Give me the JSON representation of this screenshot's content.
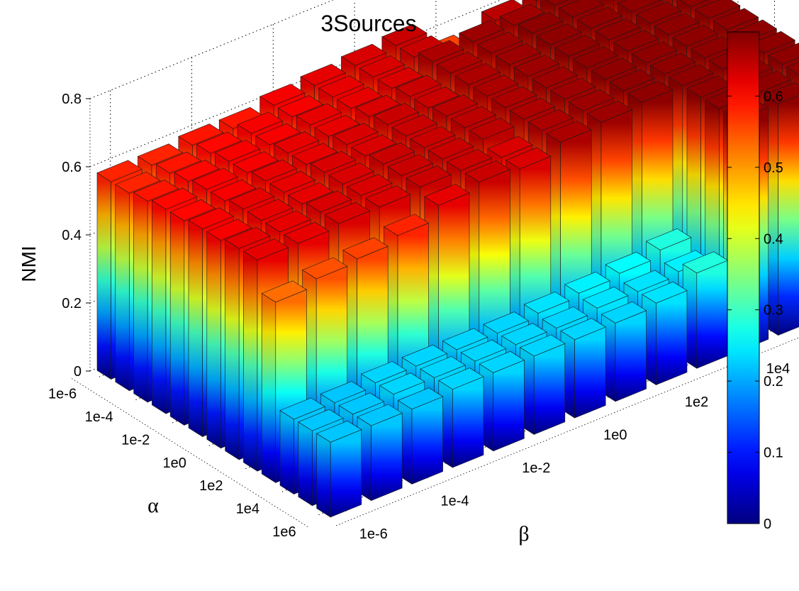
{
  "chart_data": {
    "type": "bar3d",
    "title": "3Sources",
    "zlabel": "NMI",
    "xlabel": "α",
    "ylabel": "β",
    "alpha_categories": [
      "1e-6",
      "1e-5",
      "1e-4",
      "1e-3",
      "1e-2",
      "1e-1",
      "1e0",
      "1e1",
      "1e2",
      "1e3",
      "1e4",
      "1e5",
      "1e6"
    ],
    "beta_categories": [
      "1e-6",
      "1e-5",
      "1e-4",
      "1e-3",
      "1e-2",
      "1e-1",
      "1e0",
      "1e1",
      "1e2",
      "1e3",
      "1e4",
      "1e5",
      "1e6"
    ],
    "alpha_tick_labels": [
      "1e-6",
      "1e-4",
      "1e-2",
      "1e0",
      "1e2",
      "1e4",
      "1e6"
    ],
    "beta_tick_labels": [
      "1e-6",
      "1e-4",
      "1e-2",
      "1e0",
      "1e2",
      "1e4",
      "1e6"
    ],
    "z_ticks": [
      "0",
      "0.2",
      "0.4",
      "0.6",
      "0.8"
    ],
    "zlim": [
      0,
      0.8
    ],
    "grid": true,
    "colormap": "jet",
    "colorbar": {
      "limits": [
        0,
        0.69
      ],
      "ticks": [
        "0",
        "0.1",
        "0.2",
        "0.3",
        "0.4",
        "0.5",
        "0.6"
      ],
      "position": "right"
    },
    "values": [
      [
        0.58,
        0.58,
        0.59,
        0.59,
        0.61,
        0.62,
        0.63,
        0.64,
        0.56,
        0.54,
        0.28,
        0.6,
        0.61
      ],
      [
        0.58,
        0.59,
        0.6,
        0.61,
        0.61,
        0.62,
        0.63,
        0.64,
        0.55,
        0.65,
        0.66,
        0.67,
        0.67
      ],
      [
        0.59,
        0.6,
        0.61,
        0.61,
        0.62,
        0.62,
        0.63,
        0.66,
        0.67,
        0.67,
        0.68,
        0.68,
        0.68
      ],
      [
        0.6,
        0.61,
        0.61,
        0.62,
        0.62,
        0.63,
        0.64,
        0.66,
        0.67,
        0.68,
        0.68,
        0.68,
        0.68
      ],
      [
        0.6,
        0.61,
        0.62,
        0.62,
        0.63,
        0.64,
        0.64,
        0.66,
        0.67,
        0.68,
        0.68,
        0.68,
        0.68
      ],
      [
        0.61,
        0.62,
        0.62,
        0.63,
        0.63,
        0.64,
        0.65,
        0.66,
        0.67,
        0.68,
        0.68,
        0.68,
        0.68
      ],
      [
        0.61,
        0.62,
        0.62,
        0.63,
        0.64,
        0.64,
        0.65,
        0.66,
        0.67,
        0.68,
        0.68,
        0.68,
        0.68
      ],
      [
        0.62,
        0.62,
        0.63,
        0.63,
        0.64,
        0.64,
        0.65,
        0.66,
        0.67,
        0.68,
        0.68,
        0.68,
        0.68
      ],
      [
        0.62,
        0.62,
        0.63,
        0.63,
        0.64,
        0.64,
        0.63,
        0.66,
        0.67,
        0.68,
        0.68,
        0.68,
        0.68
      ],
      [
        0.53,
        0.55,
        0.56,
        0.58,
        0.62,
        0.64,
        0.63,
        0.66,
        0.67,
        0.68,
        0.68,
        0.68,
        0.68
      ],
      [
        0.22,
        0.22,
        0.23,
        0.23,
        0.23,
        0.23,
        0.24,
        0.25,
        0.26,
        0.28,
        0.68,
        0.68,
        0.68
      ],
      [
        0.22,
        0.22,
        0.23,
        0.23,
        0.23,
        0.23,
        0.23,
        0.24,
        0.24,
        0.25,
        0.68,
        0.68,
        0.68
      ],
      [
        0.22,
        0.22,
        0.22,
        0.23,
        0.23,
        0.23,
        0.23,
        0.23,
        0.24,
        0.28,
        0.68,
        0.68,
        0.68
      ]
    ]
  }
}
